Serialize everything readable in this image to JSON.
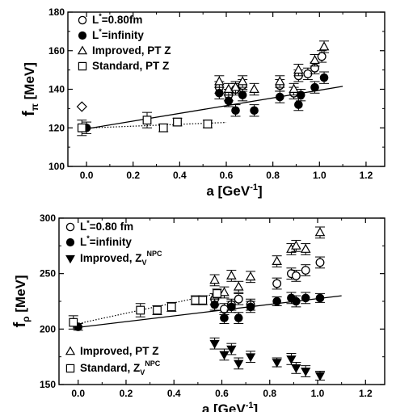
{
  "chart_data": [
    {
      "type": "scatter",
      "xlabel": {
        "base": "a [GeV",
        "sup": "-1",
        "close": "]"
      },
      "ylabel": {
        "base": "f",
        "sub": "π",
        "rest": " [MeV]"
      },
      "xlim": [
        -0.08,
        1.28
      ],
      "ylim": [
        100,
        180
      ],
      "xticks": [
        "0.0",
        "0.2",
        "0.4",
        "0.6",
        "0.8",
        "1.0",
        "1.2"
      ],
      "yticks": [
        "100",
        "120",
        "140",
        "160",
        "180"
      ],
      "legend": [
        {
          "marker": "circle-open",
          "base": "L",
          "sup": "*",
          "rest": "=0.80fm"
        },
        {
          "marker": "circle-filled",
          "base": "L",
          "sup": "*",
          "rest": "=infinity"
        },
        {
          "marker": "triangle-open",
          "base": "Improved, PT Z"
        },
        {
          "marker": "square-open",
          "base": "Standard, PT Z"
        }
      ],
      "series": [
        {
          "marker": "circle-open",
          "points": [
            [
              0.57,
              141,
              3
            ],
            [
              0.61,
              137,
              3
            ],
            [
              0.64,
              140,
              3
            ],
            [
              0.67,
              142,
              3
            ],
            [
              0.83,
              142,
              3
            ],
            [
              0.89,
              138,
              3
            ],
            [
              0.91,
              147,
              3
            ],
            [
              0.95,
              148,
              3
            ],
            [
              0.98,
              151,
              3
            ],
            [
              1.01,
              157,
              3
            ]
          ]
        },
        {
          "marker": "circle-filled",
          "points": [
            [
              0.0,
              120,
              3
            ],
            [
              0.57,
              138,
              3
            ],
            [
              0.61,
              134,
              3
            ],
            [
              0.64,
              129,
              3
            ],
            [
              0.67,
              137,
              3
            ],
            [
              0.72,
              129,
              3
            ],
            [
              0.83,
              136,
              3
            ],
            [
              0.91,
              132,
              3
            ],
            [
              0.92,
              137,
              3
            ],
            [
              0.98,
              141,
              3
            ],
            [
              1.02,
              146,
              3
            ]
          ]
        },
        {
          "marker": "triangle-open",
          "points": [
            [
              0.57,
              144,
              3
            ],
            [
              0.61,
              140,
              3
            ],
            [
              0.64,
              141,
              3
            ],
            [
              0.67,
              144,
              3
            ],
            [
              0.72,
              140,
              3
            ],
            [
              0.83,
              144,
              3
            ],
            [
              0.89,
              140,
              3
            ],
            [
              0.91,
              150,
              3
            ],
            [
              0.98,
              155,
              3
            ],
            [
              1.02,
              162,
              3
            ]
          ]
        },
        {
          "marker": "square-open",
          "points": [
            [
              -0.02,
              120,
              4
            ],
            [
              0.26,
              124,
              4
            ],
            [
              0.33,
              120,
              2
            ],
            [
              0.39,
              123,
              2
            ],
            [
              0.52,
              122,
              2
            ]
          ]
        },
        {
          "marker": "diamond-open",
          "points": [
            [
              -0.02,
              131,
              0
            ]
          ]
        }
      ],
      "fits": [
        {
          "style": "solid",
          "x": [
            0.0,
            1.1
          ],
          "y": [
            119.5,
            141.5
          ]
        },
        {
          "style": "dotted",
          "x": [
            -0.02,
            0.6
          ],
          "y": [
            119.8,
            122.8
          ]
        }
      ]
    },
    {
      "type": "scatter",
      "xlabel": {
        "base": "a [GeV",
        "sup": "-1",
        "close": "]"
      },
      "ylabel": {
        "base": "f",
        "sub": "ρ",
        "rest": " [MeV]"
      },
      "xlim": [
        -0.08,
        1.28
      ],
      "ylim": [
        150,
        300
      ],
      "xticks": [
        "0.0",
        "0.2",
        "0.4",
        "0.6",
        "0.8",
        "1.0",
        "1.2"
      ],
      "yticks": [
        "150",
        "200",
        "250",
        "300"
      ],
      "legend": [
        {
          "marker": "circle-open",
          "base": "L",
          "sup": "*",
          "rest": "=0.80 fm"
        },
        {
          "marker": "circle-filled",
          "base": "L",
          "sup": "*",
          "rest": "=infinity"
        },
        {
          "marker": "triangle-down-filled",
          "base": "Improved, Z",
          "sub": "V",
          "sup": "NPC"
        },
        {
          "marker": "triangle-open",
          "base": "Improved, PT  Z"
        },
        {
          "marker": "square-open",
          "base": "Standard, Z",
          "sub": "V",
          "sup": "NPC"
        }
      ],
      "series": [
        {
          "marker": "circle-open",
          "points": [
            [
              0.57,
              227,
              5
            ],
            [
              0.61,
              218,
              5
            ],
            [
              0.64,
              222,
              5
            ],
            [
              0.67,
              227,
              5
            ],
            [
              0.72,
              222,
              5
            ],
            [
              0.83,
              241,
              5
            ],
            [
              0.89,
              250,
              5
            ],
            [
              0.91,
              248,
              5
            ],
            [
              0.95,
              253,
              5
            ],
            [
              1.01,
              260,
              5
            ]
          ]
        },
        {
          "marker": "circle-filled",
          "points": [
            [
              0.0,
              202,
              3
            ],
            [
              0.57,
              222,
              5
            ],
            [
              0.61,
              210,
              5
            ],
            [
              0.64,
              220,
              5
            ],
            [
              0.67,
              210,
              5
            ],
            [
              0.72,
              220,
              5
            ],
            [
              0.83,
              225,
              4
            ],
            [
              0.89,
              228,
              5
            ],
            [
              0.91,
              225,
              5
            ],
            [
              0.95,
              228,
              5
            ],
            [
              1.01,
              228,
              4
            ]
          ]
        },
        {
          "marker": "triangle-down-filled",
          "points": [
            [
              0.57,
              187,
              5
            ],
            [
              0.61,
              177,
              5
            ],
            [
              0.64,
              182,
              5
            ],
            [
              0.67,
              169,
              5
            ],
            [
              0.72,
              175,
              5
            ],
            [
              0.83,
              170,
              4
            ],
            [
              0.89,
              173,
              5
            ],
            [
              0.91,
              165,
              5
            ],
            [
              0.95,
              162,
              5
            ],
            [
              1.01,
              158,
              4
            ]
          ]
        },
        {
          "marker": "triangle-open",
          "points": [
            [
              0.57,
              244,
              5
            ],
            [
              0.61,
              233,
              5
            ],
            [
              0.64,
              248,
              5
            ],
            [
              0.67,
              238,
              5
            ],
            [
              0.72,
              247,
              5
            ],
            [
              0.83,
              261,
              5
            ],
            [
              0.89,
              272,
              5
            ],
            [
              0.91,
              275,
              5
            ],
            [
              0.95,
              272,
              5
            ],
            [
              1.01,
              287,
              5
            ]
          ]
        },
        {
          "marker": "square-open",
          "points": [
            [
              -0.02,
              206,
              6
            ],
            [
              0.26,
              217,
              6
            ],
            [
              0.33,
              217,
              4
            ],
            [
              0.39,
              220,
              4
            ],
            [
              0.49,
              226,
              4
            ],
            [
              0.52,
              226,
              4
            ],
            [
              0.58,
              232,
              4
            ]
          ]
        }
      ],
      "fits": [
        {
          "style": "solid",
          "x": [
            0.0,
            1.1
          ],
          "y": [
            201.5,
            230
          ]
        },
        {
          "style": "dotted",
          "x": [
            -0.02,
            0.58
          ],
          "y": [
            204,
            232
          ]
        }
      ]
    }
  ]
}
